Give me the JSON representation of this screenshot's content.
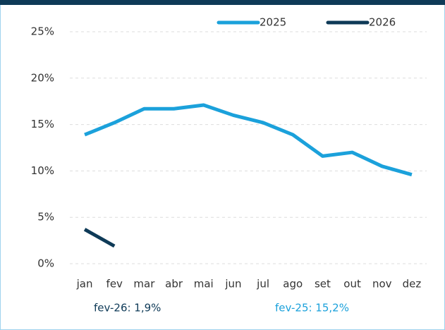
{
  "chart_data": {
    "type": "line",
    "categories": [
      "jan",
      "fev",
      "mar",
      "abr",
      "mai",
      "jun",
      "jul",
      "ago",
      "set",
      "out",
      "nov",
      "dez"
    ],
    "series": [
      {
        "name": "2025",
        "color": "#1ba1db",
        "values": [
          13.9,
          15.2,
          16.7,
          16.7,
          17.1,
          16.0,
          15.2,
          13.9,
          11.6,
          12.0,
          10.5,
          9.6
        ]
      },
      {
        "name": "2026",
        "color": "#0e3a57",
        "values": [
          3.7,
          1.9,
          null,
          null,
          null,
          null,
          null,
          null,
          null,
          null,
          null,
          null
        ]
      }
    ],
    "ylim": [
      0,
      25
    ],
    "yticks": [
      {
        "value": 0,
        "label": "0%"
      },
      {
        "value": 5,
        "label": "5%"
      },
      {
        "value": 10,
        "label": "10%"
      },
      {
        "value": 15,
        "label": "15%"
      },
      {
        "value": 20,
        "label": "20%"
      },
      {
        "value": 25,
        "label": "25%"
      }
    ],
    "grid": true,
    "legend": "top-right",
    "annotations": [
      "fev-26: 1,9%",
      "fev-25: 15,2%"
    ]
  }
}
